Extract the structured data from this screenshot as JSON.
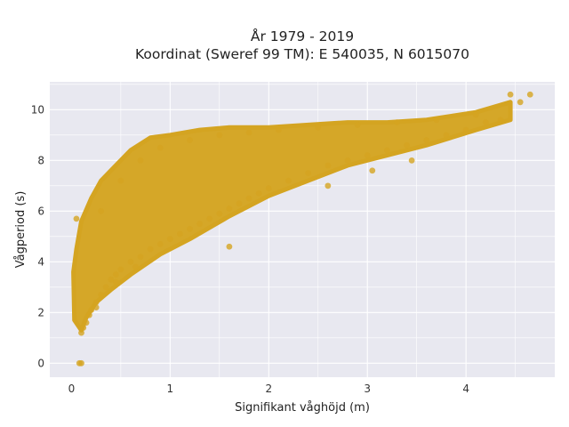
{
  "chart_data": {
    "type": "scatter",
    "title_line1": "År 1979 - 2019",
    "title_line2": "Koordinat (Sweref 99 TM): E 540035, N 6015070",
    "xlabel": "Signifikant våghöjd (m)",
    "ylabel": "Vågperiod (s)",
    "xlim": [
      -0.22,
      4.9
    ],
    "ylim": [
      -0.55,
      11.1
    ],
    "x_ticks": [
      0,
      1,
      2,
      3,
      4
    ],
    "y_ticks": [
      0,
      2,
      4,
      6,
      8,
      10
    ],
    "grid": true,
    "legend": "none",
    "marker_color": "#D4A421",
    "background_color": "#E8E8F0",
    "series": [
      {
        "values_note": "",
        "x": [
          0.08,
          0.1,
          0.05,
          0.1,
          0.12,
          0.15,
          0.18,
          0.2,
          0.25,
          0.3,
          0.35,
          0.4,
          0.45,
          0.5,
          0.6,
          0.7,
          0.8,
          0.9,
          1.0,
          1.1,
          1.2,
          1.3,
          1.4,
          1.5,
          1.6,
          1.7,
          1.8,
          1.9,
          2.0,
          2.2,
          2.4,
          2.6,
          2.8,
          3.0,
          3.2,
          3.4,
          3.6,
          3.8,
          4.0,
          4.2,
          4.35,
          4.45,
          4.55,
          4.65,
          0.3,
          0.5,
          0.7,
          0.9,
          1.2,
          1.5,
          1.8,
          2.1,
          2.5,
          2.9,
          3.3,
          3.7,
          4.1,
          0.25,
          0.45,
          0.65,
          1.6,
          2.6,
          3.05,
          3.45
        ],
        "y": [
          0.0,
          0.0,
          5.7,
          1.2,
          1.4,
          1.6,
          1.9,
          2.1,
          2.4,
          2.7,
          3.0,
          3.3,
          3.5,
          3.7,
          4.0,
          4.2,
          4.5,
          4.7,
          4.9,
          5.1,
          5.3,
          5.5,
          5.7,
          5.9,
          6.1,
          6.3,
          6.5,
          6.7,
          6.9,
          7.2,
          7.5,
          7.8,
          8.0,
          8.2,
          8.4,
          8.6,
          8.8,
          9.0,
          9.2,
          9.5,
          9.6,
          10.6,
          10.3,
          10.6,
          6.0,
          7.2,
          8.0,
          8.5,
          8.8,
          9.0,
          9.1,
          9.2,
          9.3,
          9.4,
          9.5,
          9.6,
          9.8,
          2.2,
          3.2,
          3.8,
          4.6,
          7.0,
          7.6,
          8.0
        ]
      }
    ]
  }
}
